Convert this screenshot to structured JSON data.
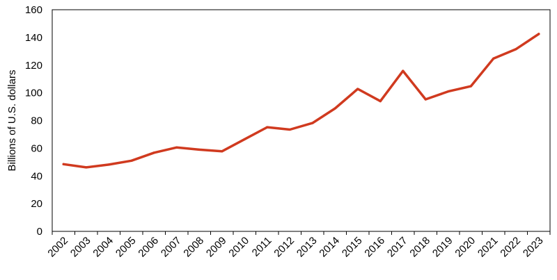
{
  "chart_data": {
    "type": "line",
    "title": "",
    "xlabel": "",
    "ylabel": "Billions of U.S. dollars",
    "ylim": [
      0,
      160
    ],
    "yticks": [
      0,
      20,
      40,
      60,
      80,
      100,
      120,
      140,
      160
    ],
    "grid": false,
    "legend": "none",
    "categories": [
      "2002",
      "2003",
      "2004",
      "2005",
      "2006",
      "2007",
      "2008",
      "2009",
      "2010",
      "2011",
      "2012",
      "2013",
      "2014",
      "2015",
      "2016",
      "2017",
      "2018",
      "2019",
      "2020",
      "2021",
      "2022",
      "2023"
    ],
    "series": [
      {
        "color": "#d03a1f",
        "values": [
          48.5,
          46.2,
          48.2,
          51.0,
          56.8,
          60.6,
          59.0,
          57.8,
          66.5,
          75.2,
          73.5,
          78.2,
          88.8,
          102.8,
          94.0,
          115.8,
          95.3,
          101.0,
          104.8,
          124.8,
          131.6,
          142.5
        ]
      }
    ]
  }
}
